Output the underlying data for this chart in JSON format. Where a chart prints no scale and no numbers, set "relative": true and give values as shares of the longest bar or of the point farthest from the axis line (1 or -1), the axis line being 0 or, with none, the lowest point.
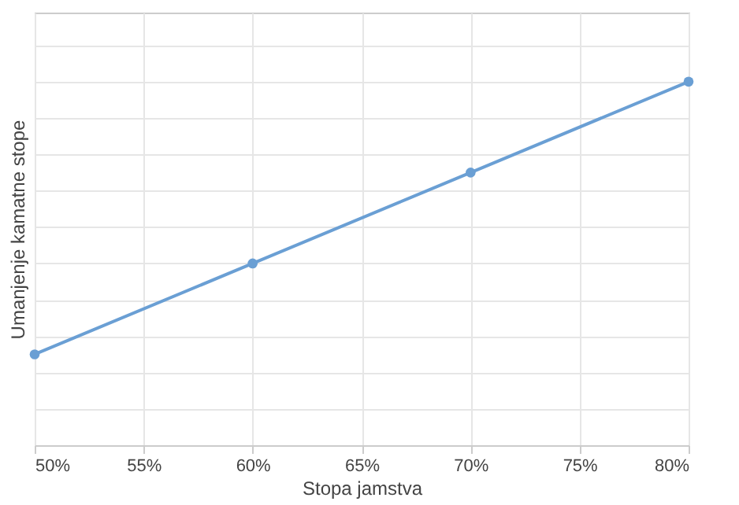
{
  "chart_data": {
    "type": "line",
    "xlabel": "Stopa jamstva",
    "ylabel": "Umanjenje kamatne stope",
    "relative": true,
    "x": [
      50,
      60,
      70,
      80
    ],
    "series": [
      {
        "color": "#6a9fd4",
        "values": [
          0.25,
          0.5,
          0.75,
          1
        ]
      }
    ],
    "xlim": [
      50,
      80
    ],
    "xticks": [
      {
        "value": 50,
        "label": "50%"
      },
      {
        "value": 55,
        "label": "55%"
      },
      {
        "value": 60,
        "label": "60%"
      },
      {
        "value": 65,
        "label": "65%"
      },
      {
        "value": 70,
        "label": "70%"
      },
      {
        "value": 75,
        "label": "75%"
      },
      {
        "value": 80,
        "label": "80%"
      }
    ],
    "grid": true,
    "marker": "circle",
    "line_style": "solid",
    "legend": false
  }
}
